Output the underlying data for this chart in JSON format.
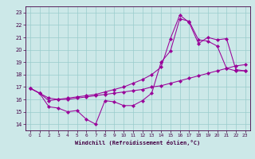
{
  "xlabel": "Windchill (Refroidissement éolien,°C)",
  "xlim": [
    -0.5,
    23.5
  ],
  "ylim": [
    13.5,
    23.5
  ],
  "yticks": [
    14,
    15,
    16,
    17,
    18,
    19,
    20,
    21,
    22,
    23
  ],
  "xticks": [
    0,
    1,
    2,
    3,
    4,
    5,
    6,
    7,
    8,
    9,
    10,
    11,
    12,
    13,
    14,
    15,
    16,
    17,
    18,
    19,
    20,
    21,
    22,
    23
  ],
  "bg_color": "#cce8e8",
  "line_color": "#990099",
  "series": [
    {
      "x": [
        0,
        1,
        2,
        3,
        4,
        5,
        6,
        7,
        8,
        9,
        10,
        11,
        12,
        13,
        14,
        15,
        16,
        17,
        18,
        19,
        20,
        21,
        22,
        23
      ],
      "y": [
        16.9,
        16.5,
        15.4,
        15.3,
        15.0,
        15.1,
        14.4,
        14.0,
        15.9,
        15.8,
        15.5,
        15.5,
        15.9,
        16.5,
        19.0,
        19.9,
        22.5,
        22.3,
        20.8,
        20.7,
        20.3,
        18.5,
        18.3,
        18.3
      ]
    },
    {
      "x": [
        0,
        1,
        2,
        3,
        4,
        5,
        6,
        7,
        8,
        9,
        10,
        11,
        12,
        13,
        14,
        15,
        16,
        17,
        18,
        19,
        20,
        21,
        22,
        23
      ],
      "y": [
        16.9,
        16.5,
        15.9,
        16.0,
        16.0,
        16.1,
        16.2,
        16.3,
        16.4,
        16.5,
        16.6,
        16.7,
        16.8,
        17.0,
        17.1,
        17.3,
        17.5,
        17.7,
        17.9,
        18.1,
        18.3,
        18.5,
        18.7,
        18.8
      ]
    },
    {
      "x": [
        0,
        1,
        2,
        3,
        4,
        5,
        6,
        7,
        8,
        9,
        10,
        11,
        12,
        13,
        14,
        15,
        16,
        17,
        18,
        19,
        20,
        21,
        22,
        23
      ],
      "y": [
        16.9,
        16.5,
        16.1,
        16.0,
        16.1,
        16.2,
        16.3,
        16.4,
        16.6,
        16.8,
        17.0,
        17.3,
        17.6,
        18.0,
        18.6,
        20.9,
        22.8,
        22.2,
        20.5,
        21.0,
        20.8,
        20.9,
        18.4,
        18.3
      ]
    }
  ]
}
